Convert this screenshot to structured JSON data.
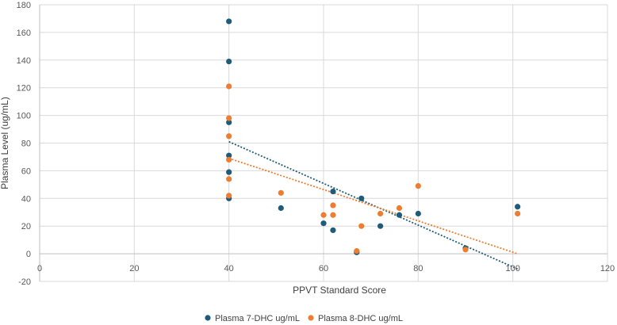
{
  "chart_data": {
    "type": "scatter",
    "title": "",
    "xlabel": "PPVT Standard Score",
    "ylabel": "Plasma Level (ug/mL)",
    "xlim": [
      0,
      120
    ],
    "ylim": [
      -20,
      180
    ],
    "xticks": [
      0,
      20,
      40,
      60,
      80,
      100,
      120
    ],
    "yticks": [
      -20,
      0,
      20,
      40,
      60,
      80,
      100,
      120,
      140,
      160,
      180
    ],
    "grid": true,
    "legend_position": "bottom",
    "series": [
      {
        "name": "Plasma 7-DHC ug/mL",
        "color": "#1F5C7A",
        "points": [
          [
            40,
            168
          ],
          [
            40,
            139
          ],
          [
            40,
            95
          ],
          [
            40,
            71
          ],
          [
            40,
            59
          ],
          [
            40,
            40
          ],
          [
            51,
            33
          ],
          [
            60,
            22
          ],
          [
            62,
            45
          ],
          [
            62,
            17
          ],
          [
            67,
            1
          ],
          [
            68,
            40
          ],
          [
            72,
            20
          ],
          [
            76,
            28
          ],
          [
            80,
            29
          ],
          [
            90,
            4
          ],
          [
            101,
            34
          ]
        ],
        "trendline": {
          "type": "linear",
          "x_start": 40,
          "y_start": 81,
          "x_end": 101,
          "y_end": -11
        }
      },
      {
        "name": "Plasma 8-DHC ug/mL",
        "color": "#ED7D31",
        "points": [
          [
            40,
            121
          ],
          [
            40,
            98
          ],
          [
            40,
            85
          ],
          [
            40,
            68
          ],
          [
            40,
            54
          ],
          [
            40,
            42
          ],
          [
            51,
            44
          ],
          [
            60,
            28
          ],
          [
            62,
            35
          ],
          [
            62,
            28
          ],
          [
            67,
            2
          ],
          [
            68,
            20
          ],
          [
            72,
            29
          ],
          [
            76,
            33
          ],
          [
            80,
            49
          ],
          [
            90,
            3
          ],
          [
            101,
            29
          ]
        ],
        "trendline": {
          "type": "linear",
          "x_start": 40,
          "y_start": 69,
          "x_end": 101,
          "y_end": 0
        }
      }
    ]
  }
}
